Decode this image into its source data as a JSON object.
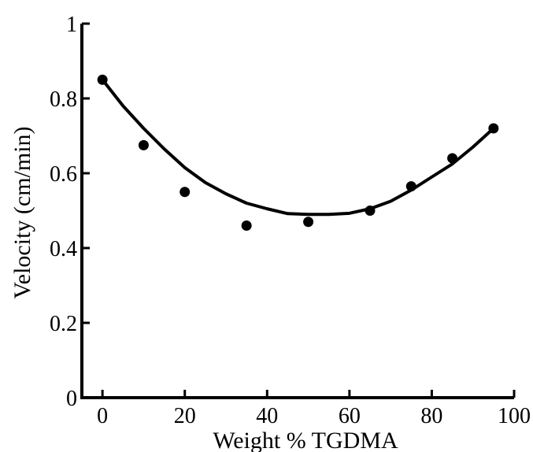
{
  "chart_data": {
    "type": "scatter",
    "title": "",
    "xlabel": "Weight % TGDMA",
    "ylabel": "Velocity (cm/min)",
    "xlim": [
      -5,
      100
    ],
    "ylim": [
      0,
      1
    ],
    "xticks": [
      0,
      20,
      40,
      60,
      80,
      100
    ],
    "yticks": [
      0,
      0.2,
      0.4,
      0.6,
      0.8,
      1
    ],
    "xtick_labels": [
      "0",
      "20",
      "40",
      "60",
      "80",
      "100"
    ],
    "ytick_labels": [
      "0",
      "0.2",
      "0.4",
      "0.6",
      "0.8",
      "1"
    ],
    "grid": false,
    "legend": "none",
    "series": [
      {
        "kind": "points",
        "color": "#000000",
        "x": [
          0,
          10,
          20,
          35,
          50,
          65,
          75,
          85,
          95
        ],
        "y": [
          0.85,
          0.675,
          0.55,
          0.46,
          0.47,
          0.5,
          0.565,
          0.64,
          0.72
        ]
      },
      {
        "kind": "fit-curve",
        "color": "#000000",
        "x": [
          0,
          5,
          10,
          15,
          20,
          25,
          30,
          35,
          40,
          45,
          50,
          55,
          60,
          65,
          70,
          75,
          80,
          85,
          90,
          95
        ],
        "y": [
          0.85,
          0.78,
          0.72,
          0.665,
          0.615,
          0.575,
          0.545,
          0.52,
          0.505,
          0.492,
          0.49,
          0.49,
          0.493,
          0.505,
          0.525,
          0.555,
          0.59,
          0.625,
          0.67,
          0.72
        ]
      }
    ]
  }
}
